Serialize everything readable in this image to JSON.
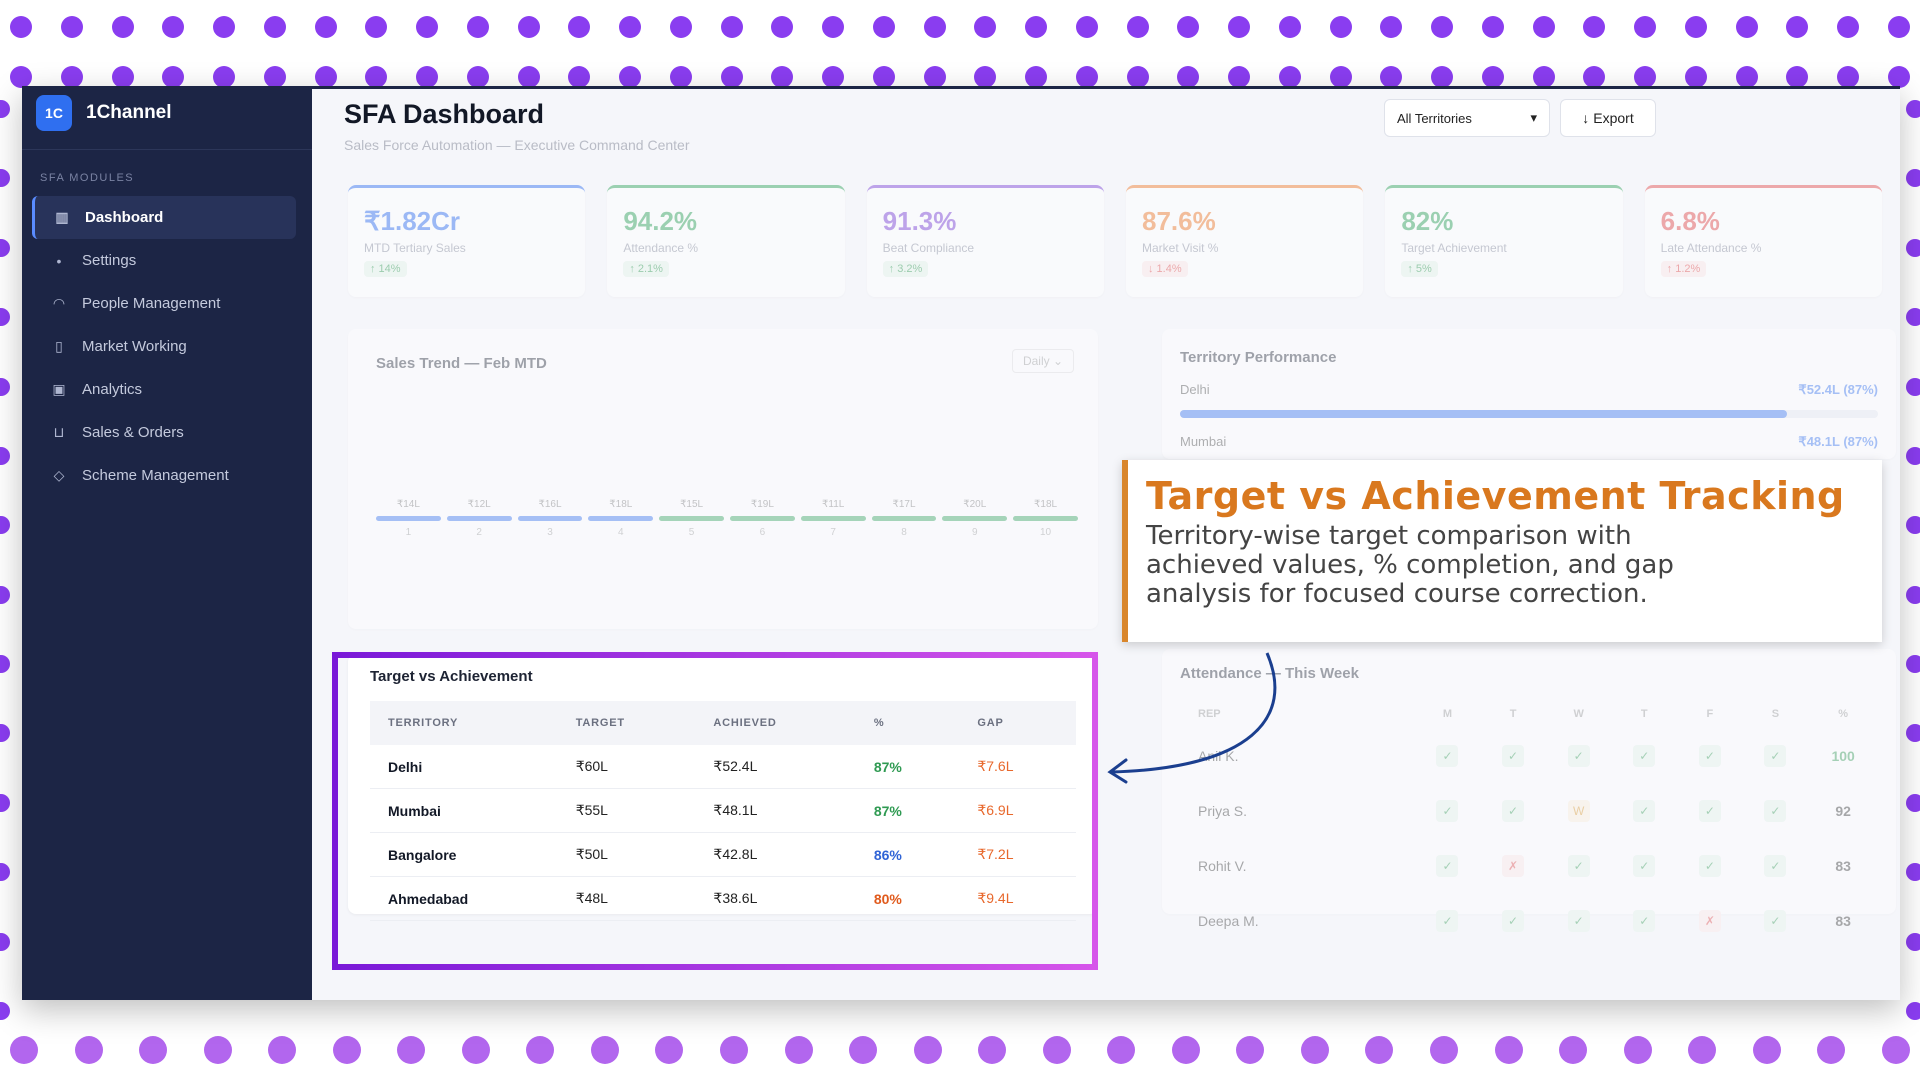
{
  "app": {
    "brand_logo": "1C",
    "brand_name": "1Channel",
    "section_label": "SFA MODULES"
  },
  "sidebar": {
    "items": [
      {
        "label": "Dashboard",
        "icon": "bar-chart-icon",
        "active": true
      },
      {
        "label": "Settings",
        "icon": "dot-icon"
      },
      {
        "label": "People Management",
        "icon": "user-icon"
      },
      {
        "label": "Market Working",
        "icon": "map-icon"
      },
      {
        "label": "Analytics",
        "icon": "analytics-icon"
      },
      {
        "label": "Sales & Orders",
        "icon": "cart-icon"
      },
      {
        "label": "Scheme Management",
        "icon": "tag-icon"
      }
    ]
  },
  "header": {
    "title": "SFA Dashboard",
    "subtitle": "Sales Force Automation — Executive Command Center",
    "territory_select": "All Territories",
    "export_label": "Export"
  },
  "kpis": [
    {
      "value": "₹1.82Cr",
      "label": "MTD Tertiary Sales",
      "change": "↑ 14%",
      "color": "#2f6ff0",
      "trend": "up"
    },
    {
      "value": "94.2%",
      "label": "Attendance %",
      "change": "↑ 2.1%",
      "color": "#2fa35a",
      "trend": "up"
    },
    {
      "value": "91.3%",
      "label": "Beat Compliance",
      "change": "↑ 3.2%",
      "color": "#7a3fd6",
      "trend": "up"
    },
    {
      "value": "87.6%",
      "label": "Market Visit %",
      "change": "↓ 1.4%",
      "color": "#ef7a2a",
      "trend": "down"
    },
    {
      "value": "82%",
      "label": "Target Achievement",
      "change": "↑ 5%",
      "color": "#2fa35a",
      "trend": "up"
    },
    {
      "value": "6.8%",
      "label": "Late Attendance %",
      "change": "↑ 1.2%",
      "color": "#e34b4b",
      "trend": "down"
    }
  ],
  "sales_trend": {
    "title": "Sales Trend — Feb MTD",
    "period": "Daily",
    "days": [
      "1",
      "2",
      "3",
      "4",
      "5",
      "6",
      "7",
      "8",
      "9",
      "10"
    ],
    "values": [
      "₹14L",
      "₹12L",
      "₹16L",
      "₹18L",
      "₹15L",
      "₹19L",
      "₹11L",
      "₹17L",
      "₹20L",
      "₹18L"
    ]
  },
  "territory_performance": {
    "title": "Territory Performance",
    "rows": [
      {
        "name": "Delhi",
        "value": "₹52.4L (87%)",
        "fill": 0.87
      },
      {
        "name": "Mumbai",
        "value": "₹48.1L (87%)",
        "fill": 0.87
      }
    ]
  },
  "target_vs_achievement": {
    "title": "Target vs Achievement",
    "columns": [
      "TERRITORY",
      "TARGET",
      "ACHIEVED",
      "%",
      "GAP"
    ],
    "rows": [
      {
        "territory": "Delhi",
        "target": "₹60L",
        "achieved": "₹52.4L",
        "pct": "87%",
        "gap": "₹7.6L",
        "pct_color": "#2f9a52"
      },
      {
        "territory": "Mumbai",
        "target": "₹55L",
        "achieved": "₹48.1L",
        "pct": "87%",
        "gap": "₹6.9L",
        "pct_color": "#2f9a52"
      },
      {
        "territory": "Bangalore",
        "target": "₹50L",
        "achieved": "₹42.8L",
        "pct": "86%",
        "gap": "₹7.2L",
        "pct_color": "#2f63d6"
      },
      {
        "territory": "Ahmedabad",
        "target": "₹48L",
        "achieved": "₹38.6L",
        "pct": "80%",
        "gap": "₹9.4L",
        "pct_color": "#e05a1c"
      }
    ]
  },
  "attendance": {
    "title": "Attendance — This Week",
    "columns": [
      "REP",
      "M",
      "T",
      "W",
      "T",
      "F",
      "S",
      "%"
    ],
    "rows": [
      {
        "rep": "Anil K.",
        "marks": [
          "✓",
          "✓",
          "✓",
          "✓",
          "✓",
          "✓"
        ],
        "pct": "100"
      },
      {
        "rep": "Priya S.",
        "marks": [
          "✓",
          "✓",
          "W",
          "✓",
          "✓",
          "✓"
        ],
        "pct": "92"
      },
      {
        "rep": "Rohit V.",
        "marks": [
          "✓",
          "✗",
          "✓",
          "✓",
          "✓",
          "✓"
        ],
        "pct": "83"
      },
      {
        "rep": "Deepa M.",
        "marks": [
          "✓",
          "✓",
          "✓",
          "✓",
          "✗",
          "✓"
        ],
        "pct": "83"
      }
    ]
  },
  "callout": {
    "title": "Target vs Achievement Tracking",
    "description": "Territory-wise target comparison with achieved values, % completion, and gap analysis for focused course correction."
  }
}
